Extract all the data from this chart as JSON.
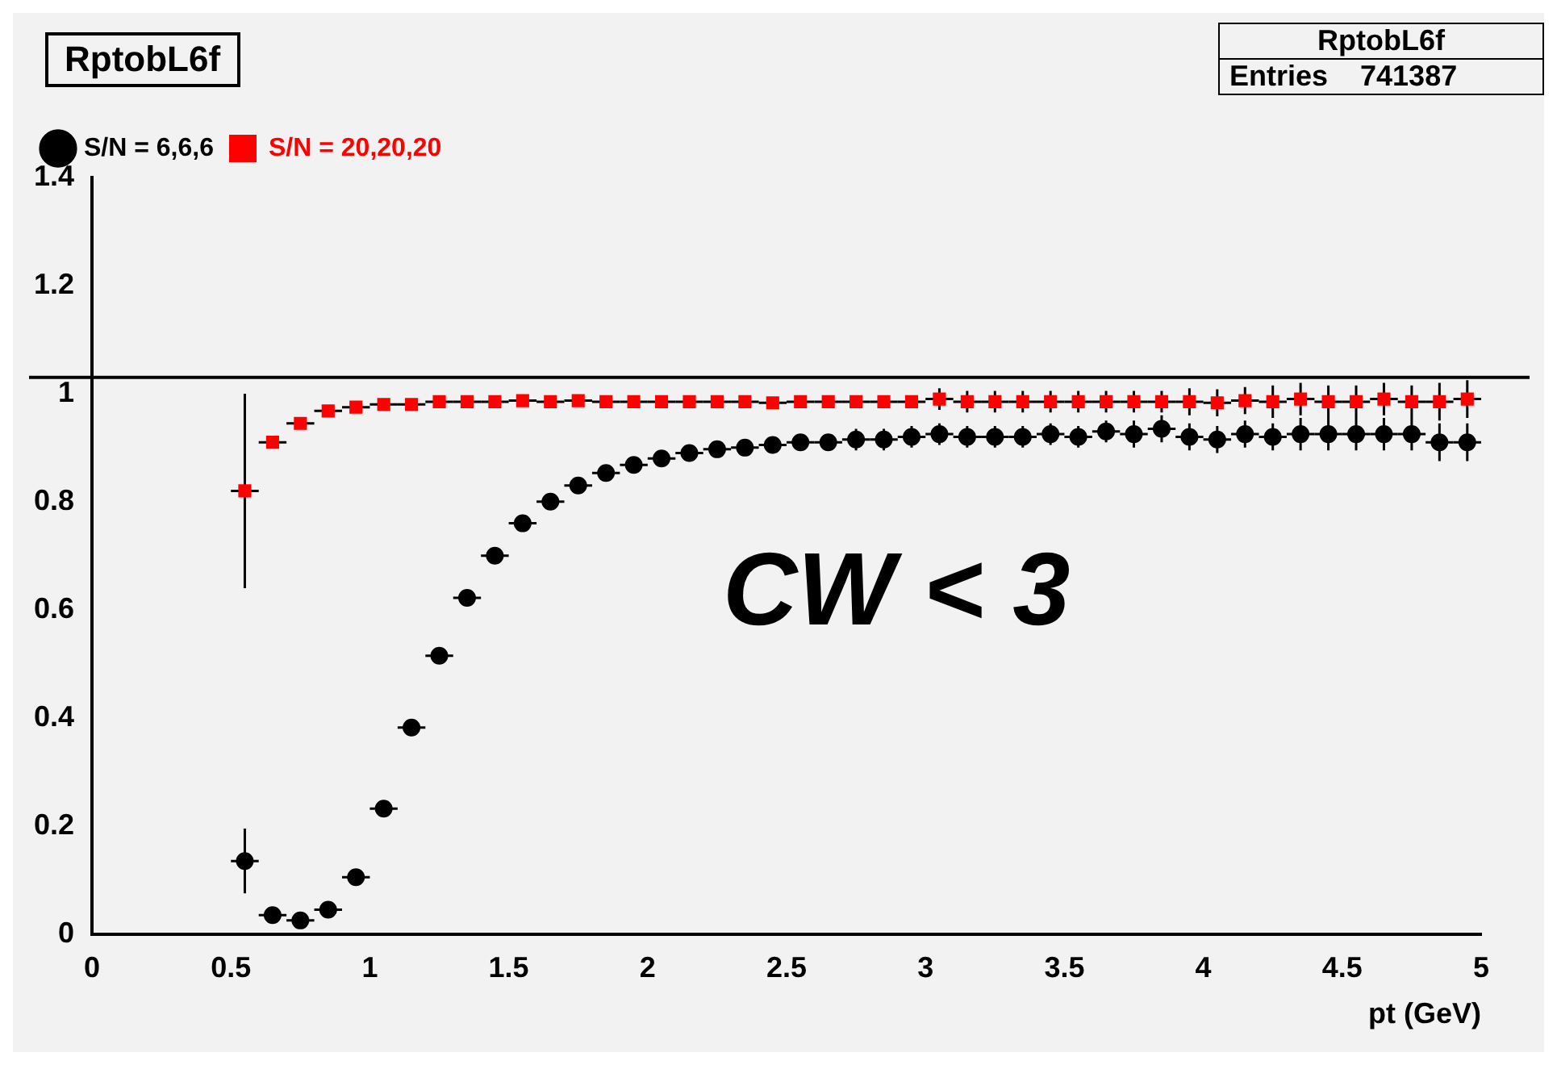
{
  "chart_data": {
    "type": "scatter",
    "title": "RptobL6f",
    "xlabel": "pt (GeV)",
    "annotations": [
      "RptobL6f",
      "Entries    741387",
      "CW < 3"
    ],
    "x": [
      0.55,
      0.65,
      0.75,
      0.85,
      0.95,
      1.05,
      1.15,
      1.25,
      1.35,
      1.45,
      1.55,
      1.65,
      1.75,
      1.85,
      1.95,
      2.05,
      2.15,
      2.25,
      2.35,
      2.45,
      2.55,
      2.65,
      2.75,
      2.85,
      2.95,
      3.05,
      3.15,
      3.25,
      3.35,
      3.45,
      3.55,
      3.65,
      3.75,
      3.85,
      3.95,
      4.05,
      4.15,
      4.25,
      4.35,
      4.45,
      4.55,
      4.65,
      4.75,
      4.85,
      4.95
    ],
    "series": [
      {
        "name": "S/N = 6,6,6",
        "color": "#000000",
        "marker": "circle",
        "values": [
          0.135,
          0.035,
          0.025,
          0.045,
          0.105,
          0.232,
          0.382,
          0.515,
          0.622,
          0.7,
          0.76,
          0.8,
          0.83,
          0.853,
          0.868,
          0.88,
          0.89,
          0.897,
          0.9,
          0.905,
          0.91,
          0.91,
          0.915,
          0.915,
          0.92,
          0.925,
          0.92,
          0.92,
          0.92,
          0.925,
          0.92,
          0.93,
          0.925,
          0.935,
          0.92,
          0.915,
          0.925,
          0.92,
          0.925,
          0.925,
          0.925,
          0.925,
          0.925,
          0.91,
          0.91
        ],
        "errors": [
          0.06,
          null,
          null,
          null,
          null,
          null,
          null,
          null,
          null,
          null,
          null,
          null,
          null,
          null,
          null,
          null,
          null,
          null,
          null,
          null,
          null,
          null,
          0.02,
          0.02,
          0.02,
          0.02,
          0.02,
          0.02,
          0.02,
          0.02,
          0.02,
          0.02,
          0.025,
          0.025,
          0.025,
          0.025,
          0.025,
          0.025,
          0.03,
          0.03,
          0.03,
          0.03,
          0.03,
          0.035,
          0.035
        ],
        "xerrors": [
          0.05,
          0.05,
          0.05,
          0.05,
          0.05,
          0.05,
          0.05,
          0.05,
          0.05,
          0.05,
          0.05,
          0.05,
          0.05,
          0.05,
          0.05,
          0.05,
          0.05,
          0.05,
          0.05,
          0.05,
          0.05,
          0.05,
          0.05,
          0.05,
          0.05,
          0.05,
          0.05,
          0.05,
          0.05,
          0.05,
          0.05,
          0.05,
          0.05,
          0.05,
          0.05,
          0.05,
          0.05,
          0.05,
          0.05,
          0.05,
          0.05,
          0.05,
          0.05,
          0.05,
          0.05
        ]
      },
      {
        "name": "S/N = 20,20,20",
        "color": "#ff0000",
        "marker": "square",
        "values": [
          0.82,
          0.91,
          0.945,
          0.968,
          0.975,
          0.98,
          0.98,
          0.985,
          0.985,
          0.985,
          0.987,
          0.985,
          0.987,
          0.985,
          0.985,
          0.985,
          0.985,
          0.985,
          0.985,
          0.983,
          0.985,
          0.985,
          0.985,
          0.985,
          0.985,
          0.99,
          0.985,
          0.985,
          0.985,
          0.985,
          0.985,
          0.985,
          0.985,
          0.985,
          0.985,
          0.983,
          0.987,
          0.985,
          0.99,
          0.985,
          0.985,
          0.99,
          0.985,
          0.985,
          0.99
        ],
        "errors": [
          0.18,
          null,
          null,
          null,
          null,
          null,
          null,
          null,
          null,
          null,
          null,
          null,
          null,
          null,
          null,
          null,
          null,
          null,
          null,
          null,
          null,
          null,
          null,
          null,
          null,
          0.02,
          0.02,
          0.02,
          0.02,
          0.02,
          0.02,
          0.02,
          0.02,
          0.02,
          0.025,
          0.025,
          0.025,
          0.03,
          0.03,
          0.03,
          0.03,
          0.03,
          0.03,
          0.035,
          0.035
        ],
        "xerrors": [
          0.05,
          0.05,
          0.05,
          0.05,
          0.05,
          0.05,
          0.05,
          0.05,
          0.05,
          0.05,
          0.05,
          0.05,
          0.05,
          0.05,
          0.05,
          0.05,
          0.05,
          0.05,
          0.05,
          0.05,
          0.05,
          0.05,
          0.05,
          0.05,
          0.05,
          0.05,
          0.05,
          0.05,
          0.05,
          0.05,
          0.05,
          0.05,
          0.05,
          0.05,
          0.05,
          0.05,
          0.05,
          0.05,
          0.05,
          0.05,
          0.05,
          0.05,
          0.05,
          0.05,
          0.05
        ]
      }
    ],
    "xlim": [
      0,
      5
    ],
    "xticks": [
      0,
      0.5,
      1,
      1.5,
      2,
      2.5,
      3,
      3.5,
      4,
      4.5,
      5
    ],
    "ylim": [
      0,
      1.4
    ],
    "yticks": [
      0,
      0.2,
      0.4,
      0.6,
      0.8,
      1,
      1.2,
      1.4
    ],
    "ref_lines": [
      {
        "axis": "y",
        "value": 1.03,
        "color": "#000000"
      }
    ],
    "grid": false,
    "legend": "top left"
  }
}
